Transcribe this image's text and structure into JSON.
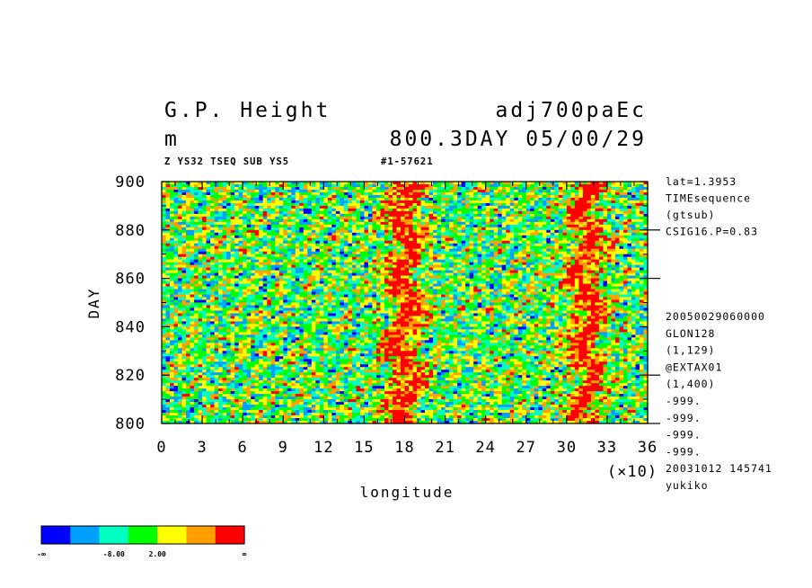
{
  "header": {
    "variable": "G.P. Height",
    "units": "m",
    "experiment": "adj700paEc",
    "time": "800.3DAY 05/00/29",
    "subtitle_left": "Z YS32 TSEQ SUB YS5",
    "subtitle_right": "#1-57621"
  },
  "side_info": {
    "top": [
      "lat=1.3953",
      "TIMEsequence",
      "(gtsub)",
      "CSIG16.P=0.83"
    ],
    "bottom": [
      "20050029060000",
      "GLON128",
      "(1,129)",
      "@EXTAX01",
      "(1,400)",
      "-999.",
      "-999.",
      "-999.",
      "-999.",
      "20031012 145741",
      "yukiko"
    ]
  },
  "colorbar": {
    "colors": [
      "#0000ff",
      "#00a0ff",
      "#00ffc0",
      "#00ff00",
      "#ffff00",
      "#ffa000",
      "#ff0000"
    ],
    "labels": [
      "-∞",
      "-8.00",
      "2.00",
      "∞"
    ]
  },
  "chart_data": {
    "type": "heatmap",
    "xlabel": "longitude",
    "x_multiplier_label": "(×10)",
    "ylabel": "DAY",
    "xlim": [
      0,
      36
    ],
    "ylim": [
      800,
      900
    ],
    "x_ticks": [
      "0",
      "3",
      "6",
      "9",
      "12",
      "15",
      "18",
      "21",
      "24",
      "27",
      "30",
      "33",
      "36"
    ],
    "y_ticks": [
      "800",
      "820",
      "840",
      "860",
      "880",
      "900"
    ],
    "color_levels": [
      -8.0,
      2.0
    ],
    "features": [
      {
        "description": "band of high values",
        "longitude_x10_center": 18,
        "approx_range": [
          16.5,
          19.5
        ]
      },
      {
        "description": "band of high values",
        "longitude_x10_center": 31.5,
        "approx_range": [
          30,
          33
        ]
      }
    ]
  }
}
